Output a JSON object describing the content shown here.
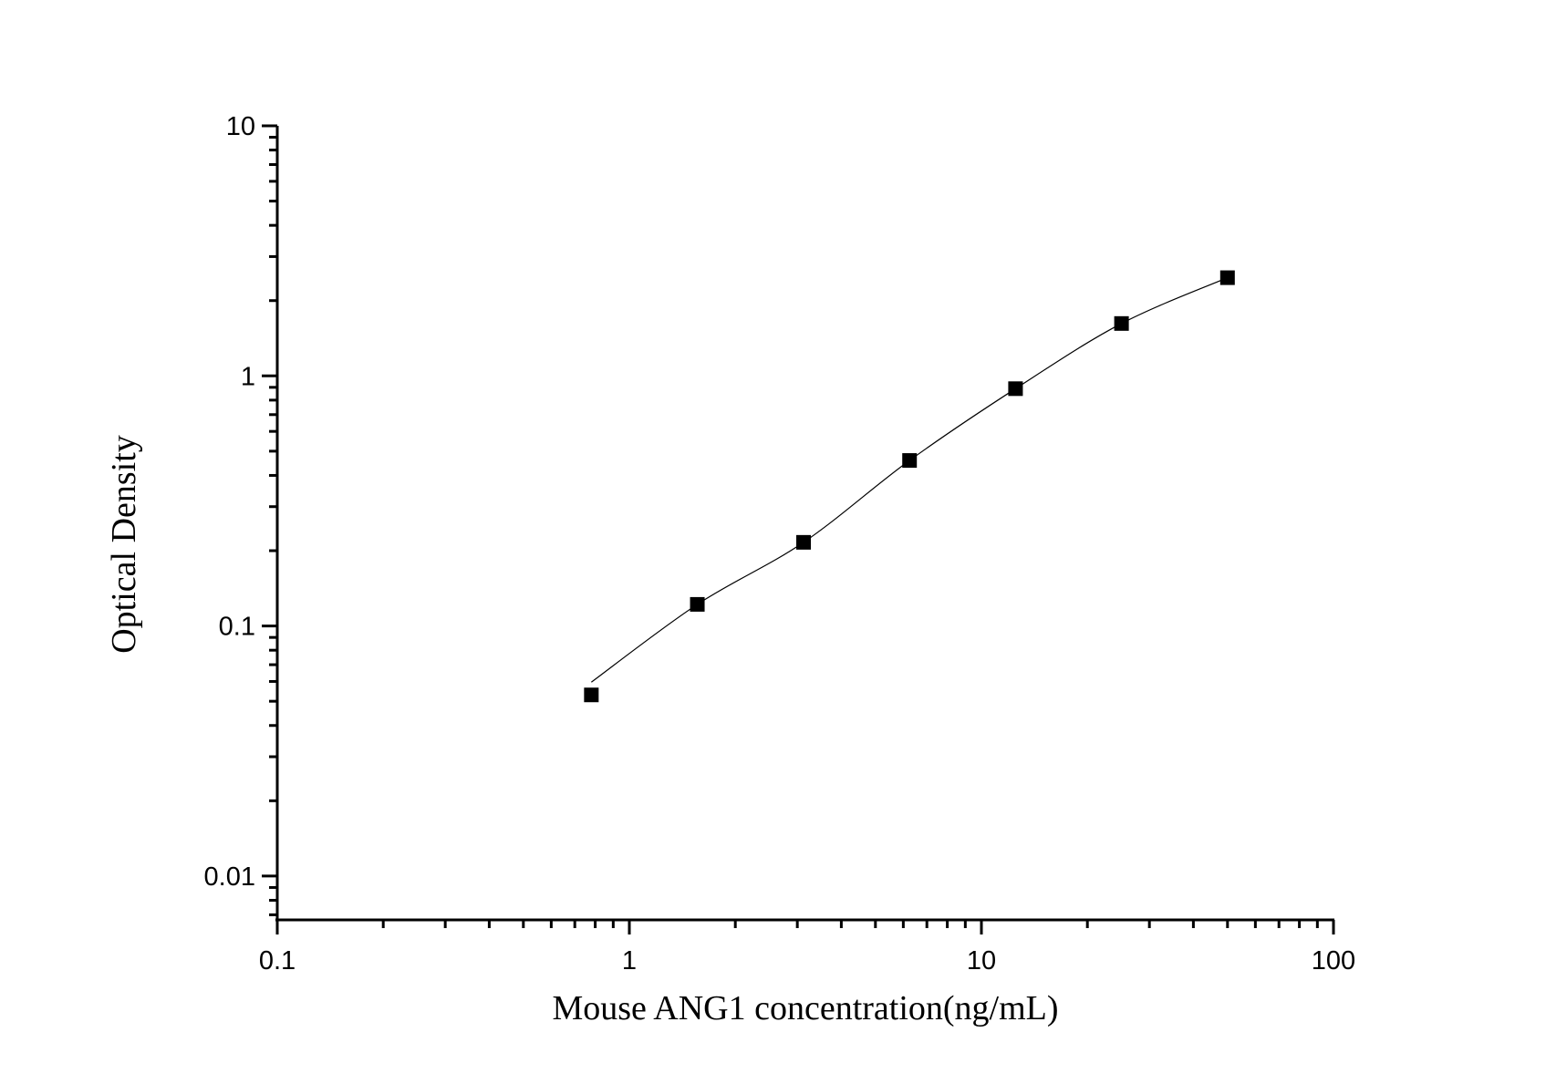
{
  "chart_data": {
    "type": "scatter",
    "title": "",
    "xlabel": "Mouse ANG1 concentration(ng/mL)",
    "ylabel": "Optical Density",
    "xscale": "log",
    "yscale": "log",
    "xlim": [
      0.1,
      100
    ],
    "ylim": [
      0.0067,
      10
    ],
    "x_ticks": [
      "0.1",
      "1",
      "10",
      "100"
    ],
    "y_ticks": [
      "0.01",
      "0.1",
      "1",
      "10"
    ],
    "grid": false,
    "legend": "none",
    "marker": "square",
    "fit_line": true,
    "color": "#000000",
    "x": [
      0.78,
      1.56,
      3.125,
      6.25,
      12.5,
      25,
      50
    ],
    "y": [
      0.053,
      0.122,
      0.216,
      0.459,
      0.889,
      1.62,
      2.47
    ]
  }
}
